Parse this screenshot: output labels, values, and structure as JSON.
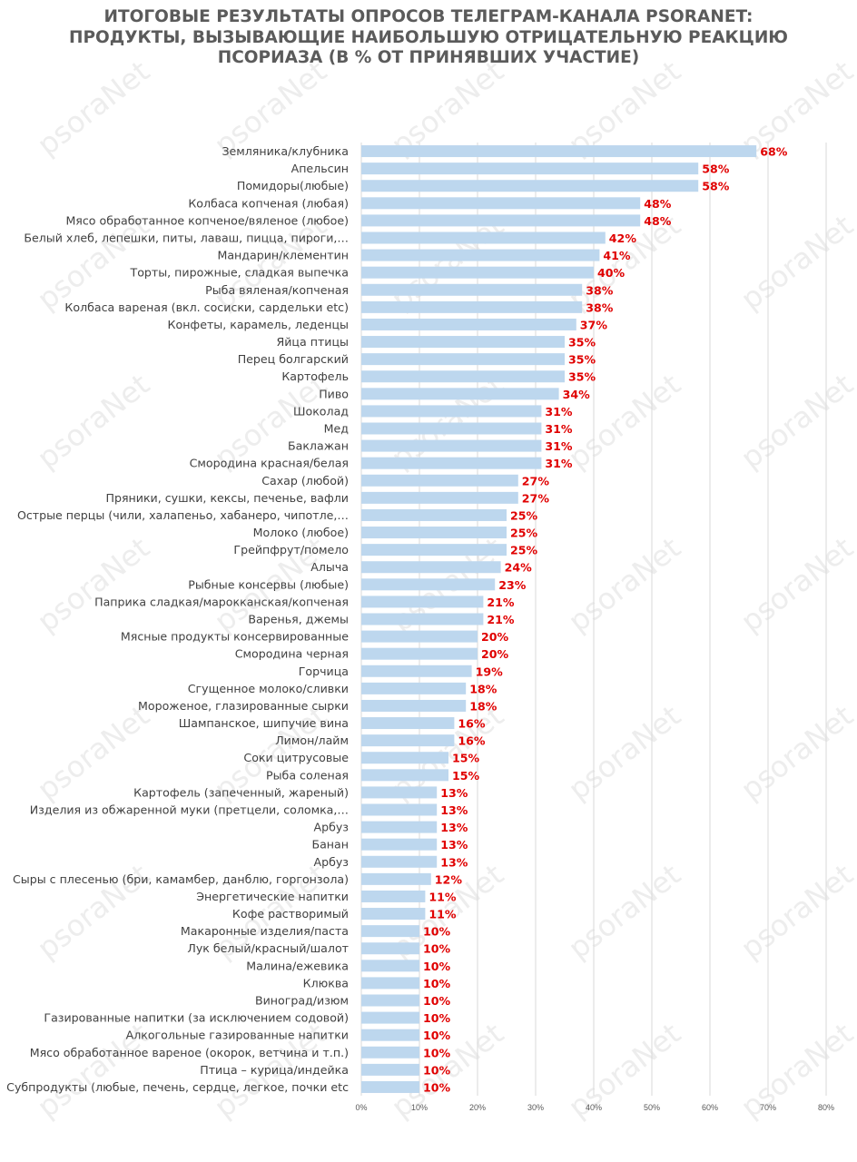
{
  "watermark_text": "psoraNet",
  "colors": {
    "bar": "#bdd7ee",
    "value_label": "#e00000",
    "title": "#5b5b5b",
    "grid": "#d9d9d9",
    "text": "#404040"
  },
  "chart_data": {
    "type": "bar",
    "orientation": "horizontal",
    "title_lines": [
      "ИТОГОВЫЕ РЕЗУЛЬТАТЫ ОПРОСОВ ТЕЛЕГРАМ-КАНАЛА PSORANET:",
      "ПРОДУКТЫ, ВЫЗЫВАЮЩИЕ НАИБОЛЬШУЮ ОТРИЦАТЕЛЬНУЮ РЕАКЦИЮ",
      "ПСОРИАЗА (В % ОТ ПРИНЯВШИХ УЧАСТИЕ)"
    ],
    "xlim": [
      0,
      80
    ],
    "x_ticks": [
      "0%",
      "10%",
      "20%",
      "30%",
      "40%",
      "50%",
      "60%",
      "70%",
      "80%"
    ],
    "grid": true,
    "categories": [
      "Земляника/клубника",
      "Апельсин",
      "Помидоры(любые)",
      "Колбаса копченая (любая)",
      "Мясо обработанное копченое/вяленое (любое)",
      "Белый хлеб, лепешки, питы, лаваш, пицца, пироги,…",
      "Мандарин/клементин",
      "Торты, пирожные, сладкая выпечка",
      "Рыба вяленая/копченая",
      "Колбаса вареная (вкл. сосиски, сардельки etc)",
      "Конфеты, карамель, леденцы",
      "Яйца птицы",
      "Перец болгарский",
      "Картофель",
      "Пиво",
      "Шоколад",
      "Мед",
      "Баклажан",
      "Смородина красная/белая",
      "Сахар (любой)",
      "Пряники, сушки, кексы, печенье, вафли",
      "Острые перцы (чили, халапеньо, хабанеро, чипотле,…",
      "Молоко (любое)",
      "Грейпфрут/помело",
      "Алыча",
      "Рыбные консервы (любые)",
      "Паприка сладкая/марокканская/копченая",
      "Варенья, джемы",
      "Мясные продукты консервированные",
      "Смородина черная",
      "Горчица",
      "Сгущенное молоко/сливки",
      "Мороженое, глазированные сырки",
      "Шампанское, шипучие вина",
      "Лимон/лайм",
      "Соки цитрусовые",
      "Рыба соленая",
      "Картофель (запеченный, жареный)",
      "Изделия из обжаренной муки (претцели, соломка,…",
      "Арбуз",
      "Банан",
      "Арбуз",
      "Сыры с плесенью (бри, камамбер, данблю, горгонзола)",
      "Энергетические напитки",
      "Кофе растворимый",
      "Макаронные изделия/паста",
      "Лук белый/красный/шалот",
      "Малина/ежевика",
      "Клюква",
      "Виноград/изюм",
      "Газированные напитки (за исключением содовой)",
      "Алкогольные газированные напитки",
      "Мясо обработанное вареное (окорок, ветчина и т.п.)",
      "Птица – курица/индейка",
      "Субпродукты (любые, печень, сердце, легкое, почки etc"
    ],
    "values": [
      68,
      58,
      58,
      48,
      48,
      42,
      41,
      40,
      38,
      38,
      37,
      35,
      35,
      35,
      34,
      31,
      31,
      31,
      31,
      27,
      27,
      25,
      25,
      25,
      24,
      23,
      21,
      21,
      20,
      20,
      19,
      18,
      18,
      16,
      16,
      15,
      15,
      13,
      13,
      13,
      13,
      13,
      12,
      11,
      11,
      10,
      10,
      10,
      10,
      10,
      10,
      10,
      10,
      10,
      10
    ],
    "value_labels": [
      "68%",
      "58%",
      "58%",
      "48%",
      "48%",
      "42%",
      "41%",
      "40%",
      "38%",
      "38%",
      "37%",
      "35%",
      "35%",
      "35%",
      "34%",
      "31%",
      "31%",
      "31%",
      "31%",
      "27%",
      "27%",
      "25%",
      "25%",
      "25%",
      "24%",
      "23%",
      "21%",
      "21%",
      "20%",
      "20%",
      "19%",
      "18%",
      "18%",
      "16%",
      "16%",
      "15%",
      "15%",
      "13%",
      "13%",
      "13%",
      "13%",
      "13%",
      "12%",
      "11%",
      "11%",
      "10%",
      "10%",
      "10%",
      "10%",
      "10%",
      "10%",
      "10%",
      "10%",
      "10%",
      "10%"
    ]
  }
}
